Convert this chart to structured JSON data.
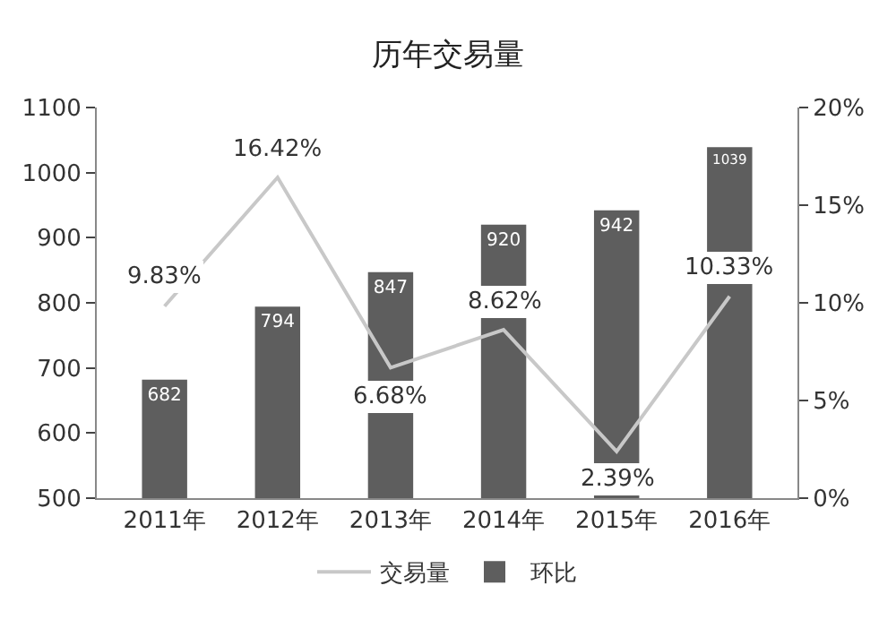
{
  "chart_data": {
    "type": "bar",
    "title": "历年交易量",
    "categories": [
      "2011年",
      "2012年",
      "2013年",
      "2014年",
      "2015年",
      "2016年"
    ],
    "series": [
      {
        "name": "交易量",
        "type": "line",
        "axis": "y2",
        "color": "#c8c8c8",
        "values": [
          9.83,
          16.42,
          6.68,
          8.62,
          2.39,
          10.33
        ],
        "value_labels": [
          "9.83%",
          "16.42%",
          "6.68%",
          "8.62%",
          "2.39%",
          "10.33%"
        ]
      },
      {
        "name": "环比",
        "color": "#5e5e5e",
        "values": [
          682,
          794,
          847,
          920,
          942,
          1039
        ],
        "value_labels": [
          "682",
          "794",
          "847",
          "920",
          "942",
          "1039"
        ]
      }
    ],
    "ylim": [
      500,
      1100
    ],
    "yticks": [
      500,
      600,
      700,
      800,
      900,
      1000,
      1100
    ],
    "y2lim": [
      0,
      20
    ],
    "y2ticks": [
      {
        "value": 0,
        "label": "0%"
      },
      {
        "value": 5,
        "label": "5%"
      },
      {
        "value": 10,
        "label": "10%"
      },
      {
        "value": 15,
        "label": "15%"
      },
      {
        "value": 20,
        "label": "20%"
      }
    ],
    "legend": "bottom",
    "marker": "none"
  }
}
